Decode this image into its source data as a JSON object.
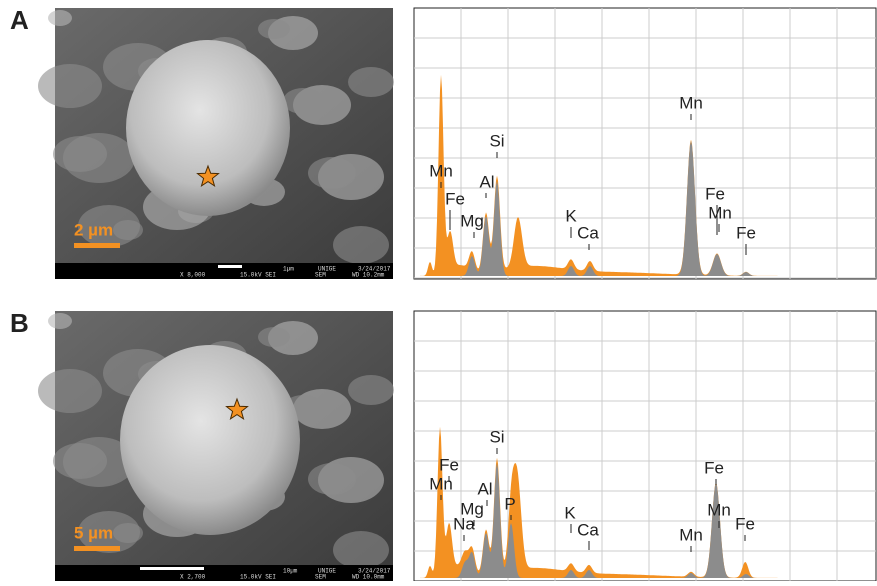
{
  "panels": [
    {
      "label": "A",
      "scale_bar": "2 µm",
      "sem_footer": {
        "magnification": "X 8,000",
        "voltage": "15.0kV SEI",
        "mode": "SEM",
        "wd": "WD 10.2mm",
        "micron_bar": "1µm",
        "institution": "UNIGE",
        "date": "3/24/2017"
      },
      "peaks": [
        "Mn",
        "Fe",
        "Mg",
        "Al",
        "Si",
        "K",
        "Ca",
        "Mn",
        "Fe",
        "Mn",
        "Fe"
      ]
    },
    {
      "label": "B",
      "scale_bar": "5 µm",
      "sem_footer": {
        "magnification": "X 2,700",
        "voltage": "15.0kV SEI",
        "mode": "SEM",
        "wd": "WD 10.0mm",
        "micron_bar": "10µm",
        "institution": "UNIGE",
        "date": "3/24/2017"
      },
      "peaks": [
        "Fe",
        "Mn",
        "Mg",
        "Na",
        "Al",
        "Si",
        "P",
        "K",
        "Ca",
        "Mn",
        "Fe",
        "Mn",
        "Fe"
      ]
    }
  ]
}
